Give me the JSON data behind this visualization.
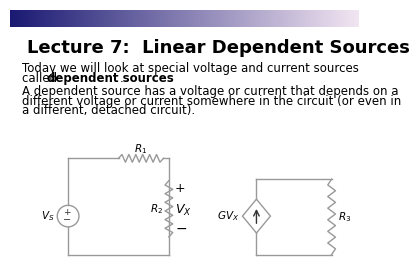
{
  "title": "Lecture 7:  Linear Dependent Sources",
  "line1_normal": "Today we will look at special voltage and current sources",
  "line2_pre": "called ",
  "line2_bold": "dependent sources",
  "line2_post": ".",
  "para2_l1": "A dependent source has a voltage or current that depends on a",
  "para2_l2": "different voltage or current somewhere in the circuit (or even in",
  "para2_l3": "a different, detached circuit).",
  "bg_color": "#ffffff",
  "text_color": "#000000",
  "circuit_color": "#999999",
  "title_fontsize": 13,
  "body_fontsize": 8.5
}
